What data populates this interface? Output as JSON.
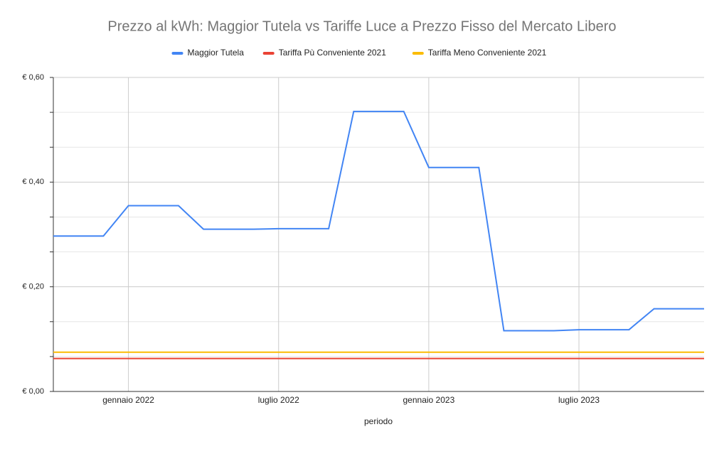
{
  "chart_data": {
    "type": "line",
    "title": "Prezzo al kWh: Maggior Tutela vs Tariffe Luce a Prezzo Fisso del Mercato Libero",
    "x_label": "periodo",
    "x": [
      "2021-10",
      "2021-11",
      "2021-12",
      "2022-01",
      "2022-02",
      "2022-03",
      "2022-04",
      "2022-05",
      "2022-06",
      "2022-07",
      "2022-08",
      "2022-09",
      "2022-10",
      "2022-11",
      "2022-12",
      "2023-01",
      "2023-02",
      "2023-03",
      "2023-04",
      "2023-05",
      "2023-06",
      "2023-07",
      "2023-08",
      "2023-09",
      "2023-10",
      "2023-11",
      "2023-12"
    ],
    "series": [
      {
        "name": "Maggior Tutela",
        "color": "#4285f4",
        "values": [
          0.297,
          0.297,
          0.297,
          0.355,
          0.355,
          0.355,
          0.31,
          0.31,
          0.31,
          0.311,
          0.311,
          0.311,
          0.535,
          0.535,
          0.535,
          0.428,
          0.428,
          0.428,
          0.116,
          0.116,
          0.116,
          0.118,
          0.118,
          0.118,
          0.158,
          0.158,
          0.158
        ]
      },
      {
        "name": "Tariffa Pù Conveniente 2021",
        "color": "#ea4335",
        "values": [
          0.063,
          0.063,
          0.063,
          0.063,
          0.063,
          0.063,
          0.063,
          0.063,
          0.063,
          0.063,
          0.063,
          0.063,
          0.063,
          0.063,
          0.063,
          0.063,
          0.063,
          0.063,
          0.063,
          0.063,
          0.063,
          0.063,
          0.063,
          0.063,
          0.063,
          0.063,
          0.063
        ]
      },
      {
        "name": "Tariffa Meno Conveniente 2021",
        "color": "#fbbc04",
        "values": [
          0.075,
          0.075,
          0.075,
          0.075,
          0.075,
          0.075,
          0.075,
          0.075,
          0.075,
          0.075,
          0.075,
          0.075,
          0.075,
          0.075,
          0.075,
          0.075,
          0.075,
          0.075,
          0.075,
          0.075,
          0.075,
          0.075,
          0.075,
          0.075,
          0.075,
          0.075,
          0.075
        ]
      }
    ],
    "xlim": [
      "2021-10",
      "2023-12"
    ],
    "xticks": [
      {
        "value": "2022-01",
        "label": "gennaio 2022"
      },
      {
        "value": "2022-07",
        "label": "luglio 2022"
      },
      {
        "value": "2023-01",
        "label": "gennaio 2023"
      },
      {
        "value": "2023-07",
        "label": "luglio 2023"
      }
    ],
    "ylim": [
      0,
      0.6
    ],
    "yticks": [
      {
        "value": 0,
        "label": "€ 0,00"
      },
      {
        "value": 0.2,
        "label": "€ 0,20"
      },
      {
        "value": 0.4,
        "label": "€ 0,40"
      },
      {
        "value": 0.6,
        "label": "€ 0,60"
      }
    ],
    "grid": true,
    "legend": "top"
  }
}
